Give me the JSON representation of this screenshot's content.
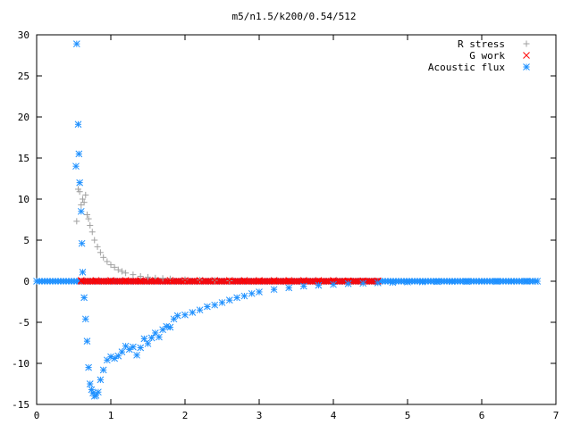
{
  "chart_data": {
    "type": "scatter",
    "title": "m5/n1.5/k200/0.54/512",
    "xlabel": "",
    "ylabel": "",
    "xlim": [
      0,
      7
    ],
    "ylim": [
      -15,
      30
    ],
    "xticks": [
      0,
      1,
      2,
      3,
      4,
      5,
      6,
      7
    ],
    "yticks": [
      -15,
      -10,
      -5,
      0,
      5,
      10,
      15,
      20,
      25,
      30
    ],
    "grid": false,
    "legend_position": "top-right",
    "series": [
      {
        "name": "R stress",
        "marker": "plus",
        "color": "#a0a0a0",
        "x": [
          0.54,
          0.56,
          0.58,
          0.6,
          0.62,
          0.64,
          0.66,
          0.68,
          0.7,
          0.72,
          0.75,
          0.78,
          0.82,
          0.86,
          0.9,
          0.95,
          1.0,
          1.05,
          1.1,
          1.15,
          1.2,
          1.3,
          1.4,
          1.5,
          1.6,
          1.7,
          1.8,
          2.0,
          2.2,
          2.4,
          2.6
        ],
        "y": [
          7.3,
          11.2,
          10.9,
          9.3,
          10.0,
          9.6,
          10.5,
          8.1,
          7.6,
          6.8,
          6.0,
          5.0,
          4.2,
          3.5,
          2.9,
          2.4,
          2.0,
          1.7,
          1.4,
          1.2,
          1.0,
          0.8,
          0.6,
          0.5,
          0.4,
          0.35,
          0.3,
          0.2,
          0.15,
          0.1,
          0.05
        ]
      },
      {
        "name": "G work",
        "marker": "cross",
        "color": "#ff0000",
        "x": [
          0.6,
          0.8,
          1.0,
          1.2,
          1.4,
          1.6,
          1.8,
          2.0,
          2.2,
          2.4,
          2.6,
          2.8,
          3.0,
          3.2,
          3.4,
          3.6,
          3.8,
          4.0,
          4.2,
          4.4,
          4.6
        ],
        "y": [
          0.1,
          0.1,
          0.1,
          0.1,
          0.1,
          0.1,
          0.1,
          0.1,
          0.1,
          0.1,
          0.1,
          0.1,
          0.1,
          0.1,
          0.1,
          0.1,
          0.1,
          0.1,
          0.05,
          0.05,
          0.05
        ]
      },
      {
        "name": "Acoustic flux",
        "marker": "star",
        "color": "#1e90ff",
        "x": [
          0.53,
          0.54,
          0.56,
          0.57,
          0.58,
          0.6,
          0.61,
          0.62,
          0.64,
          0.66,
          0.68,
          0.7,
          0.72,
          0.74,
          0.76,
          0.78,
          0.8,
          0.83,
          0.86,
          0.9,
          0.95,
          1.0,
          1.05,
          1.1,
          1.15,
          1.2,
          1.25,
          1.3,
          1.35,
          1.4,
          1.45,
          1.5,
          1.55,
          1.6,
          1.65,
          1.7,
          1.75,
          1.8,
          1.85,
          1.9,
          2.0,
          2.1,
          2.2,
          2.3,
          2.4,
          2.5,
          2.6,
          2.7,
          2.8,
          2.9,
          3.0,
          3.2,
          3.4,
          3.6,
          3.8,
          4.0,
          4.2,
          4.4,
          4.6,
          4.8,
          5.0,
          5.2,
          5.4,
          5.6,
          5.8,
          6.0,
          6.2,
          6.4,
          6.6,
          6.75
        ],
        "y": [
          14.0,
          28.9,
          19.1,
          15.5,
          12.0,
          8.5,
          4.6,
          1.1,
          -2.0,
          -4.6,
          -7.3,
          -10.5,
          -12.5,
          -13.2,
          -13.6,
          -14.0,
          -13.9,
          -13.5,
          -12.0,
          -10.8,
          -9.6,
          -9.2,
          -9.4,
          -9.1,
          -8.6,
          -7.9,
          -8.3,
          -8.0,
          -9.0,
          -8.1,
          -7.0,
          -7.6,
          -6.9,
          -6.3,
          -6.8,
          -5.9,
          -5.5,
          -5.6,
          -4.6,
          -4.2,
          -4.1,
          -3.8,
          -3.5,
          -3.1,
          -2.9,
          -2.6,
          -2.3,
          -2.0,
          -1.8,
          -1.5,
          -1.3,
          -1.0,
          -0.8,
          -0.6,
          -0.5,
          -0.4,
          -0.3,
          -0.25,
          -0.2,
          -0.15,
          -0.1,
          -0.08,
          -0.05,
          -0.04,
          -0.03,
          -0.02,
          -0.01,
          -0.01,
          0.0,
          0.0
        ]
      }
    ],
    "baseline_series": {
      "note_free": true,
      "y": 0,
      "color": "#1e90ff"
    }
  }
}
